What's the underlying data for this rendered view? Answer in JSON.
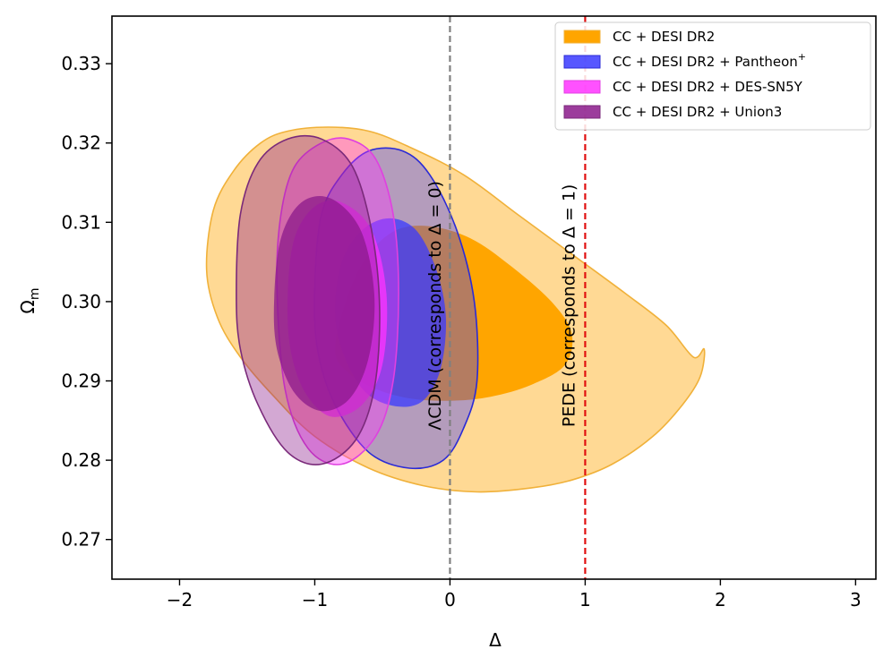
{
  "chart_data": {
    "type": "contour",
    "title": "",
    "xlabel": "Δ",
    "ylabel": "Ω_m",
    "ylabel_main": "Ω",
    "ylabel_sub": "m",
    "xlim": [
      -2.5,
      3.15
    ],
    "ylim": [
      0.265,
      0.336
    ],
    "xticks": [
      -2,
      -1,
      0,
      1,
      2,
      3
    ],
    "xtick_labels": [
      "−2",
      "−1",
      "0",
      "1",
      "2",
      "3"
    ],
    "yticks": [
      0.27,
      0.28,
      0.29,
      0.3,
      0.31,
      0.32,
      0.33
    ],
    "ytick_labels": [
      "0.27",
      "0.28",
      "0.29",
      "0.30",
      "0.31",
      "0.32",
      "0.33"
    ],
    "legend_position": "top-right",
    "series": [
      {
        "name": "CC + DESI DR2",
        "legend_label": "CC + DESI DR2",
        "color": "#ffa500",
        "edge_color": "#f0b13a",
        "contour_2sigma": [
          [
            -1.8,
            0.304
          ],
          [
            -1.75,
            0.3115
          ],
          [
            -1.6,
            0.3165
          ],
          [
            -1.4,
            0.32
          ],
          [
            -1.2,
            0.3215
          ],
          [
            -0.9,
            0.322
          ],
          [
            -0.6,
            0.3215
          ],
          [
            -0.3,
            0.3195
          ],
          [
            0.1,
            0.316
          ],
          [
            0.5,
            0.311
          ],
          [
            0.9,
            0.306
          ],
          [
            1.3,
            0.301
          ],
          [
            1.6,
            0.297
          ],
          [
            1.8,
            0.293
          ],
          [
            1.88,
            0.294
          ],
          [
            1.85,
            0.2905
          ],
          [
            1.72,
            0.287
          ],
          [
            1.5,
            0.283
          ],
          [
            1.2,
            0.2795
          ],
          [
            0.9,
            0.2775
          ],
          [
            0.6,
            0.2765
          ],
          [
            0.2,
            0.276
          ],
          [
            -0.2,
            0.2768
          ],
          [
            -0.6,
            0.279
          ],
          [
            -1.0,
            0.283
          ],
          [
            -1.3,
            0.288
          ],
          [
            -1.55,
            0.293
          ],
          [
            -1.72,
            0.298
          ]
        ],
        "contour_1sigma": [
          [
            -0.85,
            0.294
          ],
          [
            -0.75,
            0.301
          ],
          [
            -0.6,
            0.306
          ],
          [
            -0.4,
            0.309
          ],
          [
            -0.15,
            0.3095
          ],
          [
            0.15,
            0.308
          ],
          [
            0.45,
            0.3045
          ],
          [
            0.75,
            0.3
          ],
          [
            0.9,
            0.296
          ],
          [
            0.85,
            0.292
          ],
          [
            0.6,
            0.2895
          ],
          [
            0.3,
            0.288
          ],
          [
            0.0,
            0.2875
          ],
          [
            -0.3,
            0.2878
          ],
          [
            -0.55,
            0.289
          ],
          [
            -0.75,
            0.291
          ]
        ]
      },
      {
        "name": "CC + DESI DR2 + Pantheon+",
        "legend_label": "CC + DESI DR2 + Pantheon",
        "legend_sup": "+",
        "color": "#3a3aff",
        "edge_color": "#2b2bd6",
        "contour_2sigma": [
          [
            -1.0,
            0.302
          ],
          [
            -0.95,
            0.311
          ],
          [
            -0.8,
            0.316
          ],
          [
            -0.6,
            0.319
          ],
          [
            -0.35,
            0.319
          ],
          [
            -0.15,
            0.316
          ],
          [
            0.05,
            0.309
          ],
          [
            0.18,
            0.3
          ],
          [
            0.2,
            0.29
          ],
          [
            0.1,
            0.284
          ],
          [
            -0.05,
            0.28
          ],
          [
            -0.3,
            0.279
          ],
          [
            -0.6,
            0.281
          ],
          [
            -0.85,
            0.287
          ],
          [
            -0.98,
            0.294
          ]
        ],
        "contour_1sigma": [
          [
            -0.85,
            0.2985
          ],
          [
            -0.8,
            0.305
          ],
          [
            -0.65,
            0.309
          ],
          [
            -0.45,
            0.3105
          ],
          [
            -0.25,
            0.309
          ],
          [
            -0.1,
            0.304
          ],
          [
            -0.03,
            0.298
          ],
          [
            -0.07,
            0.2915
          ],
          [
            -0.2,
            0.2875
          ],
          [
            -0.4,
            0.2868
          ],
          [
            -0.62,
            0.2885
          ],
          [
            -0.78,
            0.293
          ]
        ]
      },
      {
        "name": "CC + DESI DR2 + DES-SN5Y",
        "legend_label": "CC + DESI DR2 + DES-SN5Y",
        "color": "#ff33ff",
        "edge_color": "#e040e0",
        "contour_2sigma": [
          [
            -1.28,
            0.302
          ],
          [
            -1.25,
            0.311
          ],
          [
            -1.15,
            0.317
          ],
          [
            -0.95,
            0.32
          ],
          [
            -0.75,
            0.3205
          ],
          [
            -0.55,
            0.318
          ],
          [
            -0.42,
            0.311
          ],
          [
            -0.38,
            0.301
          ],
          [
            -0.42,
            0.29
          ],
          [
            -0.55,
            0.283
          ],
          [
            -0.8,
            0.2795
          ],
          [
            -1.05,
            0.2815
          ],
          [
            -1.22,
            0.289
          ]
        ],
        "contour_1sigma": [
          [
            -1.2,
            0.301
          ],
          [
            -1.15,
            0.308
          ],
          [
            -1.0,
            0.312
          ],
          [
            -0.8,
            0.3125
          ],
          [
            -0.58,
            0.309
          ],
          [
            -0.47,
            0.301
          ],
          [
            -0.5,
            0.292
          ],
          [
            -0.65,
            0.287
          ],
          [
            -0.88,
            0.2855
          ],
          [
            -1.07,
            0.2885
          ],
          [
            -1.18,
            0.294
          ]
        ]
      },
      {
        "name": "CC + DESI DR2 + Union3",
        "legend_label": "CC + DESI DR2 + Union3",
        "color": "#8b1a8b",
        "edge_color": "#7a2a7a",
        "contour_2sigma": [
          [
            -1.58,
            0.301
          ],
          [
            -1.55,
            0.311
          ],
          [
            -1.42,
            0.3175
          ],
          [
            -1.2,
            0.3205
          ],
          [
            -0.95,
            0.3205
          ],
          [
            -0.72,
            0.317
          ],
          [
            -0.58,
            0.309
          ],
          [
            -0.52,
            0.299
          ],
          [
            -0.56,
            0.289
          ],
          [
            -0.7,
            0.2825
          ],
          [
            -0.95,
            0.2795
          ],
          [
            -1.2,
            0.281
          ],
          [
            -1.42,
            0.287
          ],
          [
            -1.55,
            0.294
          ]
        ],
        "contour_1sigma": [
          [
            -1.3,
            0.3005
          ],
          [
            -1.25,
            0.308
          ],
          [
            -1.1,
            0.3125
          ],
          [
            -0.88,
            0.313
          ],
          [
            -0.66,
            0.309
          ],
          [
            -0.56,
            0.301
          ],
          [
            -0.6,
            0.293
          ],
          [
            -0.74,
            0.2878
          ],
          [
            -0.95,
            0.2862
          ],
          [
            -1.15,
            0.2885
          ],
          [
            -1.28,
            0.294
          ]
        ]
      }
    ],
    "vlines": [
      {
        "x": 0,
        "color": "#808080",
        "style": "dashed",
        "label": "ΛCDM (corresponds to Δ = 0)",
        "label_x": -0.07,
        "label_y": 0.2995
      },
      {
        "x": 1,
        "color": "#e01010",
        "style": "dashed",
        "label": "PEDE (corresponds to Δ = 1)",
        "label_x": 0.92,
        "label_y": 0.2995
      }
    ]
  }
}
